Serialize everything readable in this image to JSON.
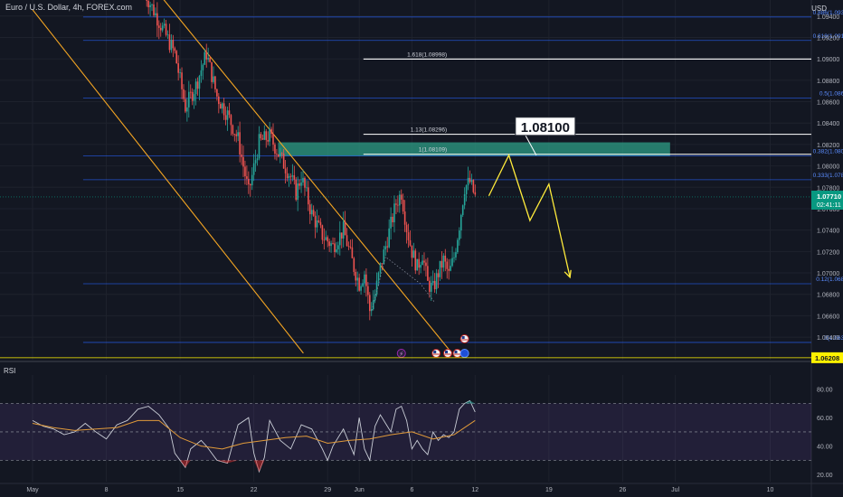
{
  "header": {
    "symbol": "Euro / U.S. Dollar, 4h, FOREX.com",
    "currency": "USD"
  },
  "rsi_label": "RSI",
  "colors": {
    "background": "#131722",
    "grid": "#1e222d",
    "up": "#26a69a",
    "down": "#ef5350",
    "channel": "#f5a623",
    "zone": "#2e9e86",
    "fib": "#2962ff",
    "target_line": "#ffffff",
    "projection": "#ffeb3b",
    "rsi_line": "#c9cdd6",
    "rsi_ma": "#e09a3a",
    "rsi_band": "#7e57c2",
    "price_tag": "#089981",
    "low_tag": "#fff200"
  },
  "callout": {
    "label": "1.08100"
  },
  "fib_levels": [
    {
      "label": "0.886(1.09391)",
      "value": 1.09391,
      "style": "fib"
    },
    {
      "label": "0.618(1.09172)",
      "value": 1.09172,
      "style": "fib"
    },
    {
      "label": "1.618(1.08998)",
      "value": 1.08998,
      "style": "white"
    },
    {
      "label": "0.5(1.08633)",
      "value": 1.08633,
      "style": "fib"
    },
    {
      "label": "1.13(1.08296)",
      "value": 1.08296,
      "style": "white"
    },
    {
      "label": "1(1.08109)",
      "value": 1.08109,
      "style": "white"
    },
    {
      "label": "0.382(1.08094)",
      "value": 1.08094,
      "style": "fib"
    },
    {
      "label": "0.333(1.07871)",
      "value": 1.07871,
      "style": "fib"
    },
    {
      "label": "0.12(1.06899)",
      "value": 1.06899,
      "style": "fib"
    },
    {
      "label": "0(1.06351)",
      "value": 1.06351,
      "style": "fib"
    }
  ],
  "price_tag": {
    "price": "1.07710",
    "countdown": "02:41:11",
    "value": 1.0771
  },
  "low_tag": {
    "price": "1.06208",
    "value": 1.06208
  },
  "chart_data": [
    {
      "type": "candlestick",
      "title": "Euro / U.S. Dollar, 4h, FOREX.com",
      "y_axis_side": "right",
      "ylim": [
        1.0619,
        1.0955
      ],
      "x_range_days": [
        0,
        71
      ],
      "x_ticks": [
        {
          "label": "May",
          "day": 0
        },
        {
          "label": "8",
          "day": 7
        },
        {
          "label": "15",
          "day": 14
        },
        {
          "label": "22",
          "day": 21
        },
        {
          "label": "29",
          "day": 28
        },
        {
          "label": "Jun",
          "day": 31
        },
        {
          "label": "6",
          "day": 36
        },
        {
          "label": "12",
          "day": 42
        },
        {
          "label": "19",
          "day": 49
        },
        {
          "label": "26",
          "day": 56
        },
        {
          "label": "Jul",
          "day": 61
        },
        {
          "label": "10",
          "day": 70
        }
      ],
      "y_ticks": [
        "1.09400",
        "1.09200",
        "1.09000",
        "1.08800",
        "1.08600",
        "1.08400",
        "1.08200",
        "1.08000",
        "1.07800",
        "1.07600",
        "1.07400",
        "1.07200",
        "1.07000",
        "1.06800",
        "1.06600",
        "1.06400"
      ],
      "y_tick_values": [
        1.094,
        1.092,
        1.09,
        1.088,
        1.086,
        1.084,
        1.082,
        1.08,
        1.078,
        1.076,
        1.074,
        1.072,
        1.07,
        1.068,
        1.066,
        1.064
      ],
      "price_path": [
        [
          10.5,
          1.0965
        ],
        [
          12.5,
          1.0925
        ],
        [
          13.5,
          1.0905
        ],
        [
          14.5,
          1.0855
        ],
        [
          15.5,
          1.0875
        ],
        [
          16.5,
          1.0905
        ],
        [
          17.5,
          1.0865
        ],
        [
          18.5,
          1.0848
        ],
        [
          19.5,
          1.0825
        ],
        [
          20.5,
          1.0775
        ],
        [
          21.5,
          1.0822
        ],
        [
          22.5,
          1.0828
        ],
        [
          23.5,
          1.0808
        ],
        [
          24.5,
          1.079
        ],
        [
          25.0,
          1.0775
        ],
        [
          25.5,
          1.079
        ],
        [
          26.5,
          1.0755
        ],
        [
          27.5,
          1.0735
        ],
        [
          28.5,
          1.0725
        ],
        [
          29.5,
          1.074
        ],
        [
          30.5,
          1.0705
        ],
        [
          31.0,
          1.069
        ],
        [
          31.5,
          1.07
        ],
        [
          32.0,
          1.0665
        ],
        [
          32.5,
          1.068
        ],
        [
          33.0,
          1.0705
        ],
        [
          34.0,
          1.0745
        ],
        [
          34.5,
          1.0765
        ],
        [
          35.0,
          1.0775
        ],
        [
          35.5,
          1.0742
        ],
        [
          36.0,
          1.072
        ],
        [
          36.5,
          1.0705
        ],
        [
          37.0,
          1.0718
        ],
        [
          37.5,
          1.069
        ],
        [
          38.0,
          1.0685
        ],
        [
          38.5,
          1.07
        ],
        [
          39.0,
          1.0712
        ],
        [
          39.5,
          1.0698
        ],
        [
          40.0,
          1.0715
        ],
        [
          40.5,
          1.0745
        ],
        [
          41.0,
          1.078
        ],
        [
          41.5,
          1.0785
        ],
        [
          42.0,
          1.0771
        ]
      ],
      "resistance_zone": [
        1.0809,
        1.0822
      ],
      "projection_path": [
        [
          43.3,
          1.0772
        ],
        [
          45.2,
          1.081
        ],
        [
          47.2,
          1.0749
        ],
        [
          49.0,
          1.0783
        ],
        [
          51.0,
          1.0696
        ]
      ],
      "channel": {
        "upper": [
          [
            8.5,
            1.1003
          ],
          [
            39.8,
            1.0625
          ]
        ],
        "lower": [
          [
            0.0,
            1.0946
          ],
          [
            25.7,
            1.0625
          ]
        ]
      },
      "event_markers": [
        {
          "day": 35.0,
          "kind": "lightning"
        },
        {
          "day": 38.3,
          "kind": "us"
        },
        {
          "day": 39.4,
          "kind": "us"
        },
        {
          "day": 40.3,
          "kind": "us"
        },
        {
          "day": 41.0,
          "kind": "eu"
        },
        {
          "day": 41.0,
          "kind": "us-top"
        }
      ]
    },
    {
      "type": "line",
      "title": "RSI",
      "ylim": [
        15,
        90
      ],
      "y_ticks": [
        "80.00",
        "60.00",
        "40.00",
        "20.00"
      ],
      "y_tick_values": [
        80,
        60,
        40,
        20
      ],
      "bands": {
        "upper": 70,
        "middle": 50,
        "lower": 30
      },
      "series": [
        {
          "kind": "rsi",
          "points": [
            [
              0,
              58
            ],
            [
              1,
              54
            ],
            [
              2,
              52
            ],
            [
              3,
              48
            ],
            [
              4,
              50
            ],
            [
              5,
              56
            ],
            [
              6,
              50
            ],
            [
              7,
              45
            ],
            [
              8,
              55
            ],
            [
              9,
              58
            ],
            [
              10,
              66
            ],
            [
              11,
              68
            ],
            [
              12,
              62
            ],
            [
              13,
              52
            ],
            [
              13.5,
              35
            ],
            [
              14,
              30
            ],
            [
              14.5,
              25
            ],
            [
              15,
              38
            ],
            [
              16,
              44
            ],
            [
              16.5,
              40
            ],
            [
              17.5,
              30
            ],
            [
              18.5,
              28
            ],
            [
              19.5,
              55
            ],
            [
              20.5,
              60
            ],
            [
              21,
              35
            ],
            [
              21.5,
              22
            ],
            [
              22,
              32
            ],
            [
              22.5,
              58
            ],
            [
              23.5,
              44
            ],
            [
              24.5,
              38
            ],
            [
              25.5,
              55
            ],
            [
              26.5,
              52
            ],
            [
              27.5,
              38
            ],
            [
              28,
              30
            ],
            [
              28.5,
              40
            ],
            [
              29.5,
              52
            ],
            [
              30.5,
              34
            ],
            [
              31,
              60
            ],
            [
              31.5,
              38
            ],
            [
              32,
              30
            ],
            [
              32.5,
              54
            ],
            [
              33,
              62
            ],
            [
              33.5,
              56
            ],
            [
              34,
              50
            ],
            [
              34.5,
              66
            ],
            [
              35,
              68
            ],
            [
              35.5,
              58
            ],
            [
              36,
              38
            ],
            [
              36.5,
              44
            ],
            [
              37,
              38
            ],
            [
              37.5,
              34
            ],
            [
              38,
              50
            ],
            [
              38.5,
              44
            ],
            [
              39,
              48
            ],
            [
              39.5,
              46
            ],
            [
              40,
              50
            ],
            [
              40.5,
              66
            ],
            [
              41,
              70
            ],
            [
              41.5,
              72
            ],
            [
              42,
              64
            ]
          ]
        },
        {
          "kind": "rsi-ma",
          "points": [
            [
              0,
              56
            ],
            [
              2,
              53
            ],
            [
              4,
              51
            ],
            [
              6,
              52
            ],
            [
              8,
              53
            ],
            [
              10,
              58
            ],
            [
              12,
              58
            ],
            [
              14,
              46
            ],
            [
              16,
              40
            ],
            [
              18,
              38
            ],
            [
              20,
              42
            ],
            [
              22,
              44
            ],
            [
              24,
              46
            ],
            [
              26,
              47
            ],
            [
              28,
              42
            ],
            [
              30,
              44
            ],
            [
              32,
              45
            ],
            [
              34,
              48
            ],
            [
              36,
              50
            ],
            [
              38,
              45
            ],
            [
              40,
              48
            ],
            [
              42,
              58
            ]
          ]
        }
      ]
    }
  ]
}
